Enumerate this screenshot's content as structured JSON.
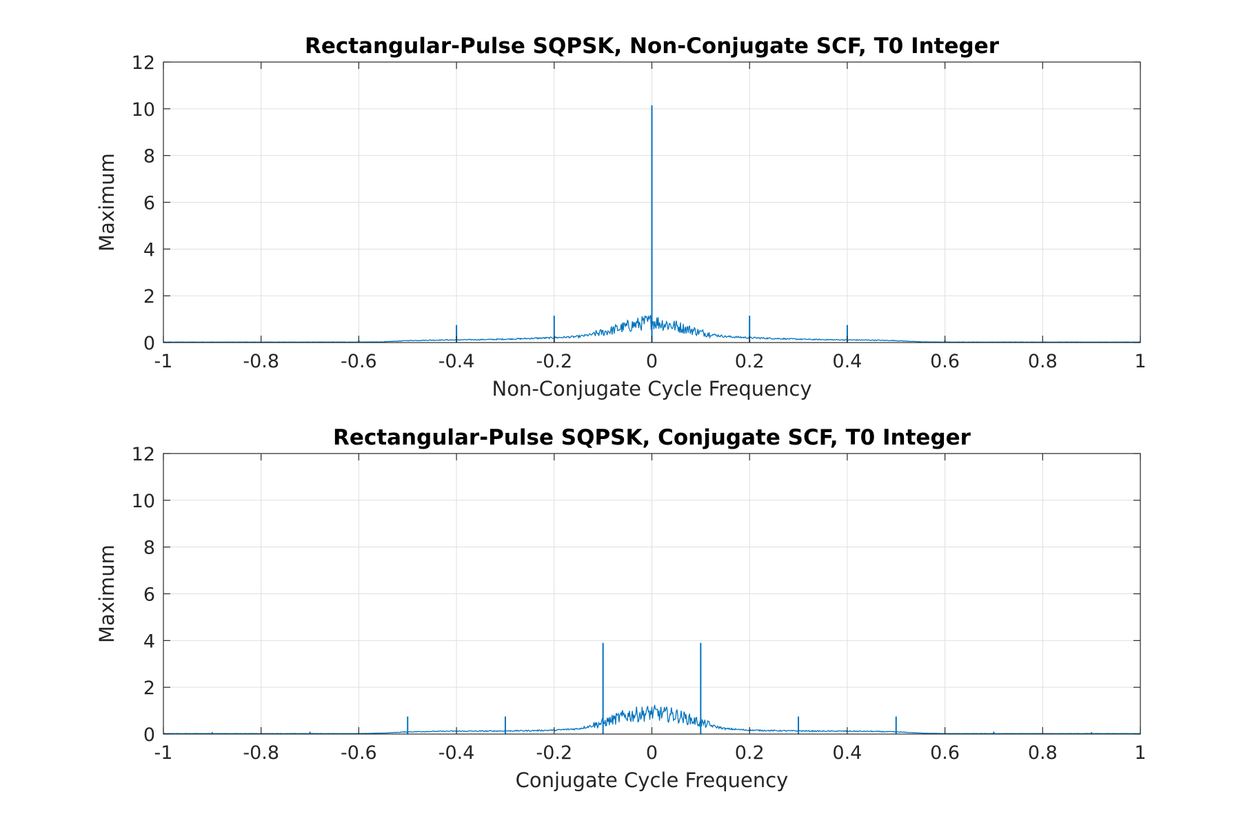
{
  "chart_data": [
    {
      "type": "line",
      "title": "Rectangular-Pulse SQPSK, Non-Conjugate SCF, T0 Integer",
      "xlabel": "Non-Conjugate Cycle Frequency",
      "ylabel": "Maximum",
      "xlim": [
        -1,
        1
      ],
      "ylim": [
        0,
        12
      ],
      "xticks": [
        "-1",
        "-0.8",
        "-0.6",
        "-0.4",
        "-0.2",
        "0",
        "0.2",
        "0.4",
        "0.6",
        "0.8",
        "1"
      ],
      "yticks": [
        "0",
        "2",
        "4",
        "6",
        "8",
        "10",
        "12"
      ],
      "grid": true,
      "line_color": "#0072BD",
      "series": [
        {
          "x": [
            -1,
            -0.8,
            -0.6,
            -0.55,
            -0.5,
            -0.45,
            -0.4,
            -0.35,
            -0.3,
            -0.25,
            -0.2,
            -0.15,
            -0.1,
            -0.05,
            0,
            0.05,
            0.1,
            0.15,
            0.2,
            0.25,
            0.3,
            0.35,
            0.4,
            0.45,
            0.5,
            0.55,
            0.6,
            0.8,
            1
          ],
          "y": [
            0.02,
            0.02,
            0.02,
            0.03,
            0.08,
            0.1,
            0.11,
            0.12,
            0.14,
            0.17,
            0.2,
            0.25,
            0.4,
            0.65,
            0.85,
            0.65,
            0.4,
            0.25,
            0.2,
            0.17,
            0.14,
            0.12,
            0.11,
            0.1,
            0.08,
            0.03,
            0.02,
            0.02,
            0.02
          ]
        }
      ],
      "spikes": [
        {
          "x": -0.6,
          "y": 0.1
        },
        {
          "x": -0.4,
          "y": 0.75
        },
        {
          "x": -0.2,
          "y": 1.15
        },
        {
          "x": 0,
          "y": 10.15
        },
        {
          "x": 0.2,
          "y": 1.15
        },
        {
          "x": 0.4,
          "y": 0.75
        },
        {
          "x": 0.6,
          "y": 0.1
        }
      ]
    },
    {
      "type": "line",
      "title": "Rectangular-Pulse SQPSK, Conjugate SCF, T0 Integer",
      "xlabel": "Conjugate Cycle Frequency",
      "ylabel": "Maximum",
      "xlim": [
        -1,
        1
      ],
      "ylim": [
        0,
        12
      ],
      "xticks": [
        "-1",
        "-0.8",
        "-0.6",
        "-0.4",
        "-0.2",
        "0",
        "0.2",
        "0.4",
        "0.6",
        "0.8",
        "1"
      ],
      "yticks": [
        "0",
        "2",
        "4",
        "6",
        "8",
        "10",
        "12"
      ],
      "grid": true,
      "line_color": "#0072BD",
      "series": [
        {
          "x": [
            -1,
            -0.8,
            -0.6,
            -0.55,
            -0.5,
            -0.45,
            -0.4,
            -0.35,
            -0.3,
            -0.25,
            -0.2,
            -0.15,
            -0.1,
            -0.05,
            0,
            0.05,
            0.1,
            0.15,
            0.2,
            0.25,
            0.3,
            0.35,
            0.4,
            0.45,
            0.5,
            0.55,
            0.6,
            0.8,
            1
          ],
          "y": [
            0.02,
            0.02,
            0.02,
            0.04,
            0.09,
            0.11,
            0.12,
            0.12,
            0.13,
            0.14,
            0.16,
            0.22,
            0.45,
            0.75,
            0.85,
            0.75,
            0.45,
            0.22,
            0.16,
            0.14,
            0.13,
            0.12,
            0.12,
            0.11,
            0.09,
            0.04,
            0.02,
            0.02,
            0.02
          ]
        }
      ],
      "spikes": [
        {
          "x": -0.9,
          "y": 0.08
        },
        {
          "x": -0.7,
          "y": 0.1
        },
        {
          "x": -0.5,
          "y": 0.75
        },
        {
          "x": -0.3,
          "y": 0.75
        },
        {
          "x": -0.1,
          "y": 3.9
        },
        {
          "x": 0.1,
          "y": 3.9
        },
        {
          "x": 0.3,
          "y": 0.75
        },
        {
          "x": 0.5,
          "y": 0.75
        },
        {
          "x": 0.7,
          "y": 0.1
        },
        {
          "x": 0.9,
          "y": 0.08
        }
      ]
    }
  ]
}
